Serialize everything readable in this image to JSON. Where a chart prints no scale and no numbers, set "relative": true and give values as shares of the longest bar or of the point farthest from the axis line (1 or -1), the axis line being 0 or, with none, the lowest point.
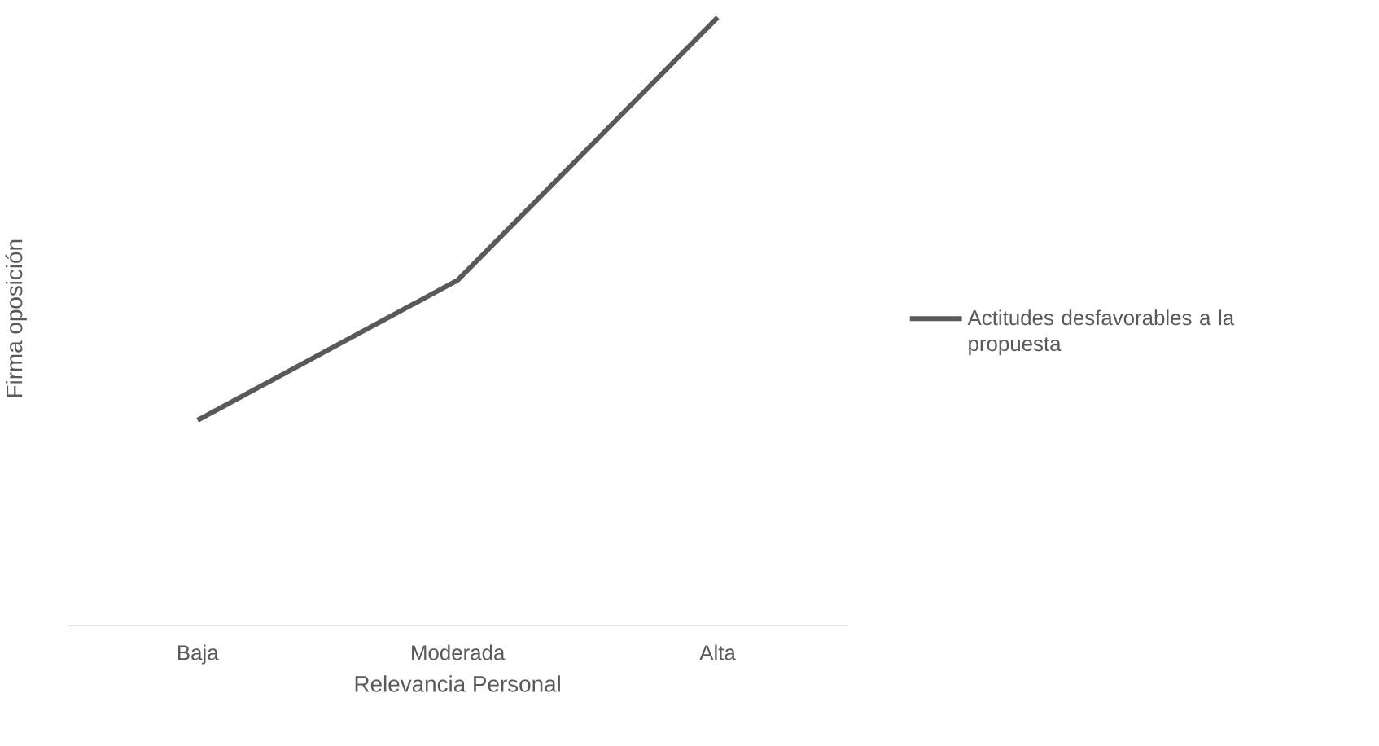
{
  "chart_data": {
    "type": "line",
    "relative": true,
    "xlabel": "Relevancia Personal",
    "ylabel": "Firma oposición",
    "categories": [
      "Baja",
      "Moderada",
      "Alta"
    ],
    "series": [
      {
        "name": "Actitudes desfavorables a la propuesta",
        "color": "#595959",
        "values": [
          0.338,
          0.568,
          1
        ]
      }
    ],
    "legend": "right",
    "marker": "none",
    "line_style": "solid"
  }
}
